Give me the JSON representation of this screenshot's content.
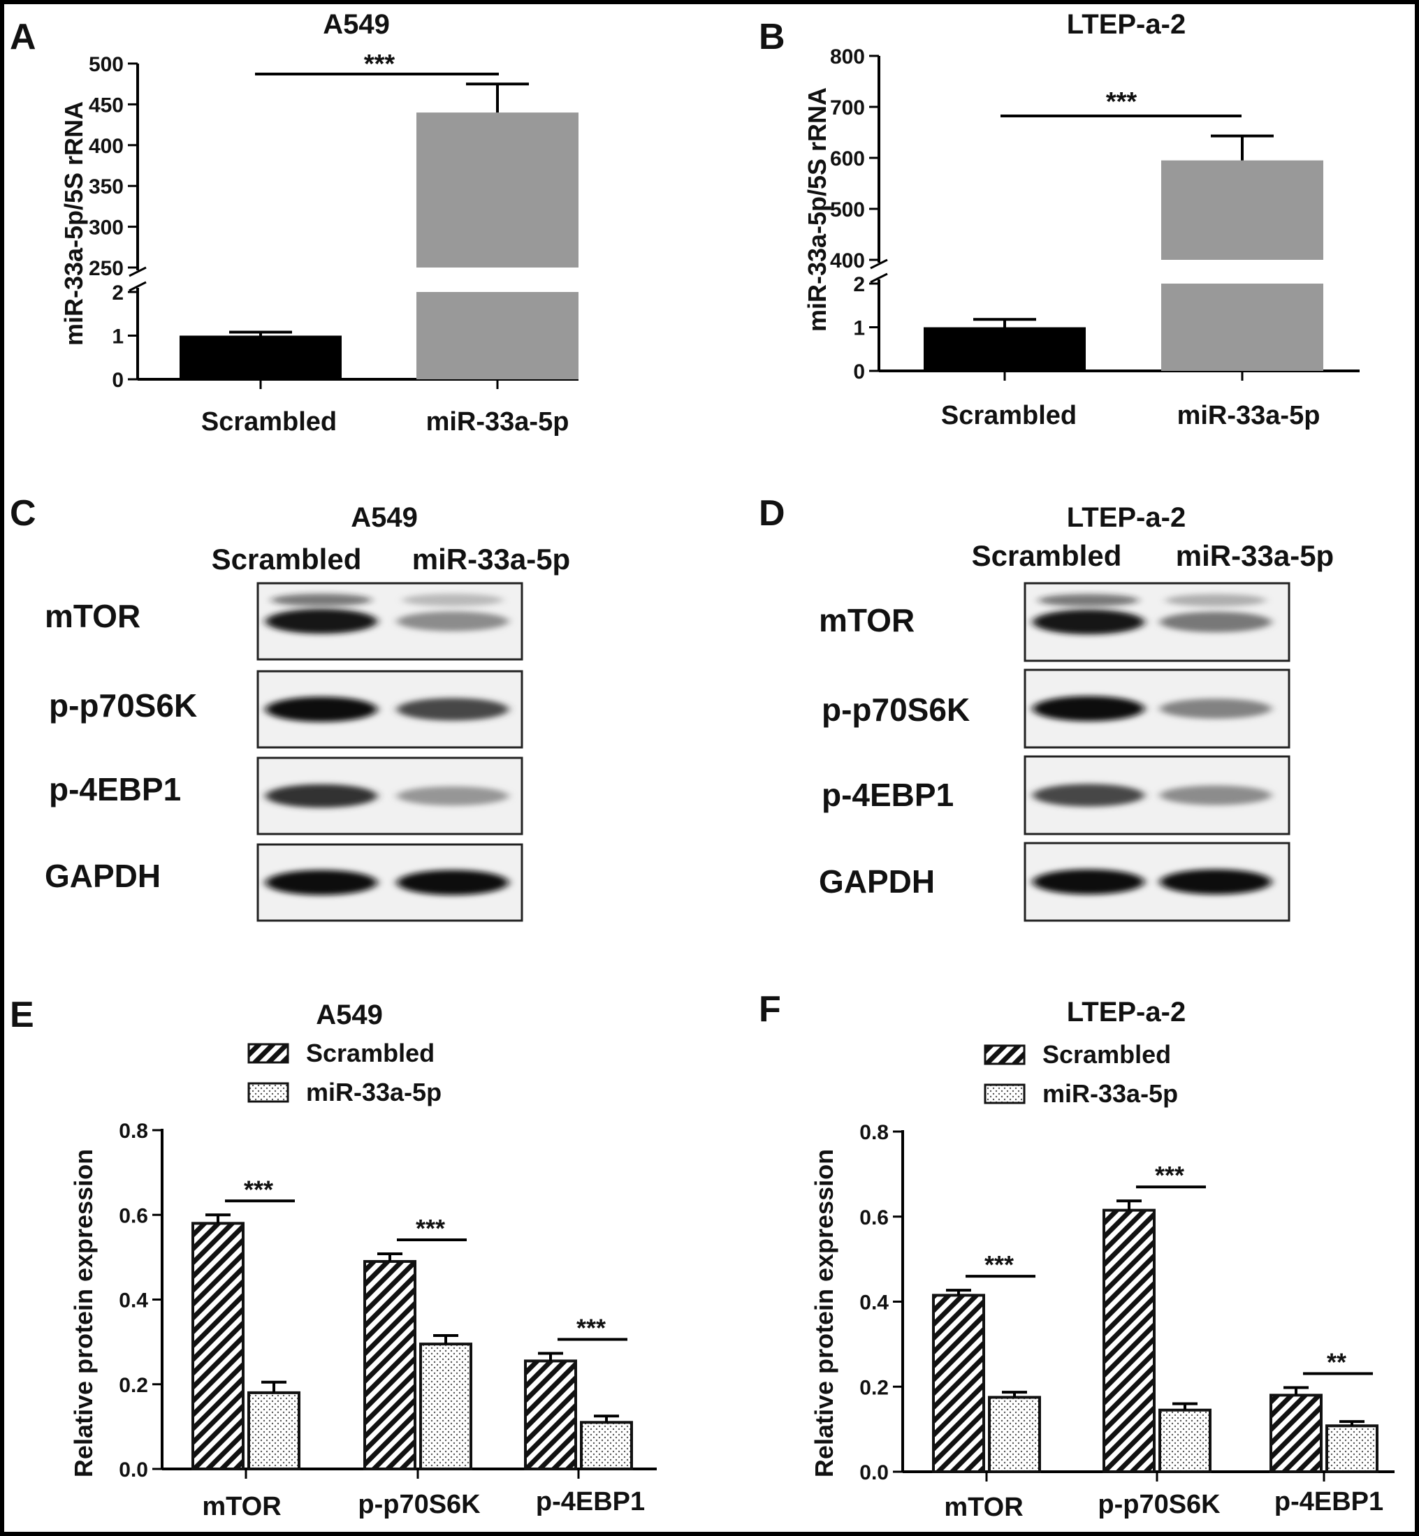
{
  "chart_data": [
    {
      "panel": "A",
      "type": "bar",
      "title": "A549",
      "ylabel": "miR-33a-5p/5S rRNA",
      "categories": [
        "Scrambled",
        "miR-33a-5p"
      ],
      "values": [
        1.0,
        440
      ],
      "errors": [
        0.08,
        35
      ],
      "colors": [
        "#000000",
        "#999999"
      ],
      "broken_axis": {
        "lower": [
          0,
          2
        ],
        "upper": [
          250,
          500
        ]
      },
      "lower_ticks": [
        "0",
        "1",
        "2"
      ],
      "upper_ticks": [
        "250",
        "300",
        "350",
        "400",
        "450",
        "500"
      ],
      "significance": "***"
    },
    {
      "panel": "B",
      "type": "bar",
      "title": "LTEP-a-2",
      "ylabel": "miR-33a-5p/5S rRNA",
      "categories": [
        "Scrambled",
        "miR-33a-5p"
      ],
      "values": [
        1.0,
        595
      ],
      "errors": [
        0.18,
        48
      ],
      "colors": [
        "#000000",
        "#999999"
      ],
      "broken_axis": {
        "lower": [
          0,
          2
        ],
        "upper": [
          400,
          800
        ]
      },
      "lower_ticks": [
        "0",
        "1",
        "2"
      ],
      "upper_ticks": [
        "400",
        "500",
        "600",
        "700",
        "800"
      ],
      "significance": "***"
    },
    {
      "panel": "E",
      "type": "bar",
      "title": "A549",
      "ylabel": "Relative protein expression",
      "categories": [
        "mTOR",
        "p-p70S6K",
        "p-4EBP1"
      ],
      "series": [
        {
          "name": "Scrambled",
          "values": [
            0.58,
            0.49,
            0.255
          ],
          "errors": [
            0.02,
            0.018,
            0.018
          ],
          "pattern": "hatch"
        },
        {
          "name": "miR-33a-5p",
          "values": [
            0.18,
            0.295,
            0.11
          ],
          "errors": [
            0.025,
            0.02,
            0.015
          ],
          "pattern": "dots"
        }
      ],
      "ylim": [
        0,
        0.8
      ],
      "yticks": [
        "0.0",
        "0.2",
        "0.4",
        "0.6",
        "0.8"
      ],
      "significance": [
        "***",
        "***",
        "***"
      ]
    },
    {
      "panel": "F",
      "type": "bar",
      "title": "LTEP-a-2",
      "ylabel": "Relative protein expression",
      "categories": [
        "mTOR",
        "p-p70S6K",
        "p-4EBP1"
      ],
      "series": [
        {
          "name": "Scrambled",
          "values": [
            0.415,
            0.615,
            0.18
          ],
          "errors": [
            0.012,
            0.022,
            0.018
          ],
          "pattern": "hatch"
        },
        {
          "name": "miR-33a-5p",
          "values": [
            0.175,
            0.145,
            0.108
          ],
          "errors": [
            0.012,
            0.015,
            0.01
          ],
          "pattern": "dots"
        }
      ],
      "ylim": [
        0,
        0.8
      ],
      "yticks": [
        "0.0",
        "0.2",
        "0.4",
        "0.6",
        "0.8"
      ],
      "significance": [
        "***",
        "***",
        "**"
      ]
    }
  ],
  "blots": [
    {
      "panel": "C",
      "title": "A549",
      "lanes": [
        "Scrambled",
        "miR-33a-5p"
      ],
      "rows": [
        {
          "label": "mTOR",
          "intensity": [
            0.95,
            0.35
          ]
        },
        {
          "label": "p-p70S6K",
          "intensity": [
            1.0,
            0.7
          ]
        },
        {
          "label": "p-4EBP1",
          "intensity": [
            0.8,
            0.3
          ]
        },
        {
          "label": "GAPDH",
          "intensity": [
            1.0,
            1.0
          ]
        }
      ]
    },
    {
      "panel": "D",
      "title": "LTEP-a-2",
      "lanes": [
        "Scrambled",
        "miR-33a-5p"
      ],
      "rows": [
        {
          "label": "mTOR",
          "intensity": [
            0.95,
            0.45
          ]
        },
        {
          "label": "p-p70S6K",
          "intensity": [
            1.0,
            0.4
          ]
        },
        {
          "label": "p-4EBP1",
          "intensity": [
            0.7,
            0.35
          ]
        },
        {
          "label": "GAPDH",
          "intensity": [
            1.0,
            1.0
          ]
        }
      ]
    }
  ]
}
